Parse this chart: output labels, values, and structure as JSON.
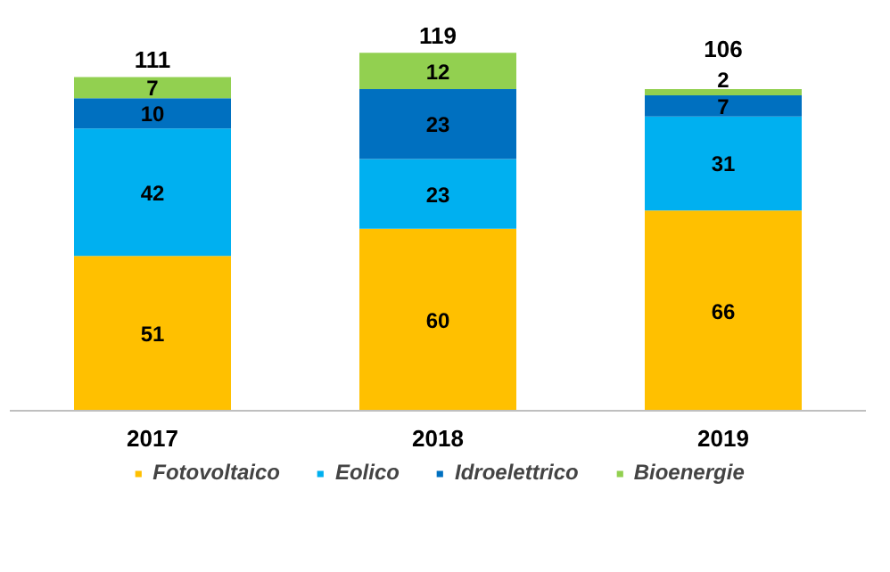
{
  "chart_data": {
    "type": "bar",
    "stacked": true,
    "data_labels": true,
    "legend": "bottom",
    "grid": false,
    "categories": [
      "2017",
      "2018",
      "2019"
    ],
    "series": [
      {
        "name": "Fotovoltaico",
        "color": "#ffc000",
        "values": [
          51,
          60,
          66
        ]
      },
      {
        "name": "Eolico",
        "color": "#00b0f0",
        "values": [
          42,
          23,
          31
        ]
      },
      {
        "name": "Idroelettrico",
        "color": "#0070c0",
        "values": [
          10,
          23,
          7
        ]
      },
      {
        "name": "Bioenergie",
        "color": "#92d050",
        "values": [
          7,
          12,
          2
        ]
      }
    ],
    "totals": [
      "111",
      "119",
      "106"
    ]
  }
}
